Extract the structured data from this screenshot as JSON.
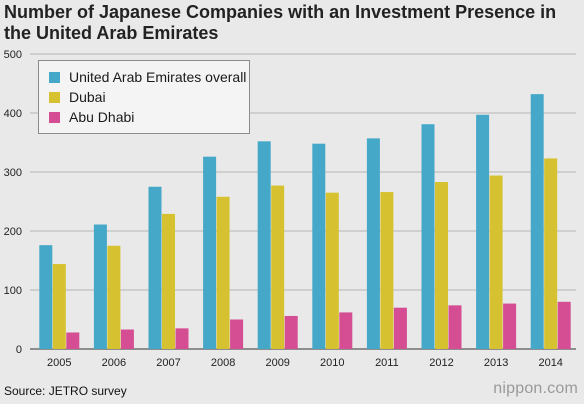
{
  "title": "Number of Japanese Companies with an Investment Presence in the United Arab Emirates",
  "source": "Source: JETRO survey",
  "logo_text": "nippon.com",
  "colors": {
    "uae": "#46a8c8",
    "dubai": "#d6c230",
    "abu_dhabi": "#d54d93",
    "grid": "#b5b5b5"
  },
  "chart_data": {
    "type": "bar",
    "title": "Number of Japanese Companies with an Investment Presence in the United Arab Emirates",
    "xlabel": "",
    "ylabel": "",
    "ylim": [
      0,
      500
    ],
    "yticks": [
      0,
      100,
      200,
      300,
      400,
      500
    ],
    "grid": true,
    "legend_position": "top-left",
    "categories": [
      "2005",
      "2006",
      "2007",
      "2008",
      "2009",
      "2010",
      "2011",
      "2012",
      "2013",
      "2014"
    ],
    "series": [
      {
        "name": "United Arab Emirates overall",
        "color": "#46a8c8",
        "values": [
          176,
          211,
          275,
          326,
          352,
          348,
          357,
          381,
          397,
          432
        ]
      },
      {
        "name": "Dubai",
        "color": "#d6c230",
        "values": [
          144,
          175,
          229,
          258,
          277,
          265,
          266,
          283,
          294,
          323
        ]
      },
      {
        "name": "Abu Dhabi",
        "color": "#d54d93",
        "values": [
          28,
          33,
          35,
          50,
          56,
          62,
          70,
          74,
          77,
          80
        ]
      }
    ]
  }
}
